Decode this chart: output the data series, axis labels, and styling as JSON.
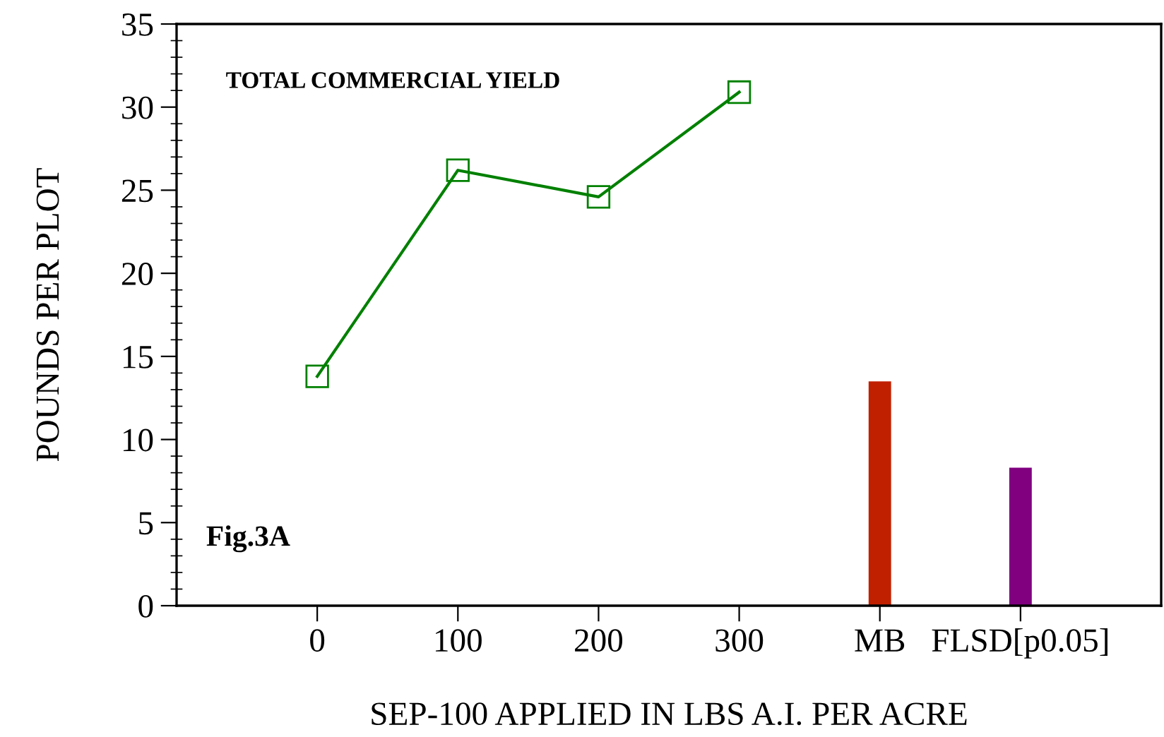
{
  "chart_data": {
    "type": "line",
    "title": "TOTAL COMMERCIAL YIELD",
    "xlabel": "SEP-100 APPLIED IN LBS A.I. PER ACRE",
    "ylabel": "POUNDS PER PLOT",
    "categories": [
      "0",
      "100",
      "200",
      "300",
      "MB",
      "FLSD[p0.05]"
    ],
    "series": [
      {
        "color": "#008000",
        "marker": "square",
        "line_style": "solid",
        "values": [
          13.8,
          26.2,
          24.6,
          30.9,
          null,
          null
        ]
      },
      {
        "type": "bar",
        "colors": [
          null,
          null,
          null,
          null,
          "#c02000",
          "#800080"
        ],
        "values": [
          null,
          null,
          null,
          null,
          13.5,
          8.3
        ]
      }
    ],
    "ylim": [
      0,
      35
    ],
    "yticks": [
      0,
      5,
      10,
      15,
      20,
      25,
      30,
      35
    ],
    "annotations": [
      "Fig.3A"
    ],
    "grid": false,
    "legend": false
  }
}
